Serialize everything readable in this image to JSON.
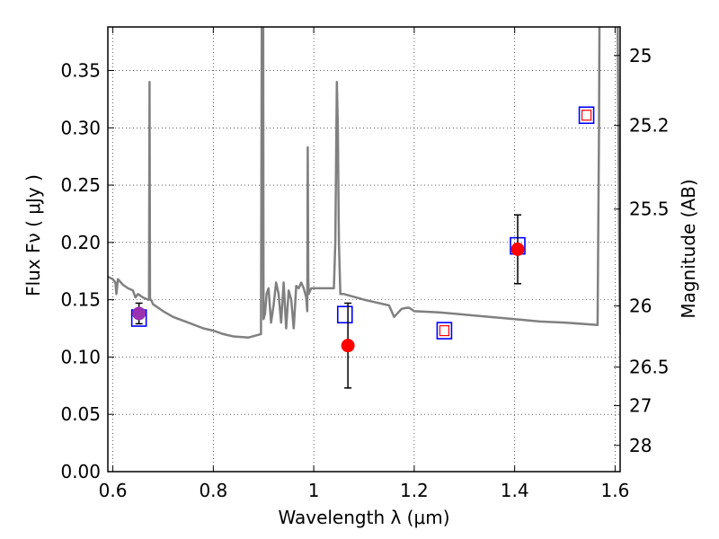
{
  "chart_data": {
    "type": "line",
    "xlabel": "Wavelength  λ (μm)",
    "ylabel_left": "Flux  Fν ( μJy )",
    "ylabel_right": "Magnitude (AB)",
    "xlim": [
      0.59,
      1.61
    ],
    "ylim": [
      0.0,
      0.388
    ],
    "x_ticks": [
      {
        "value": 0.6,
        "label": "0.6"
      },
      {
        "value": 0.8,
        "label": "0.8"
      },
      {
        "value": 1.0,
        "label": "1"
      },
      {
        "value": 1.2,
        "label": "1.2"
      },
      {
        "value": 1.4,
        "label": "1.4"
      },
      {
        "value": 1.6,
        "label": "1.6"
      }
    ],
    "y_ticks": [
      {
        "value": 0.0,
        "label": "0.00"
      },
      {
        "value": 0.05,
        "label": "0.05"
      },
      {
        "value": 0.1,
        "label": "0.10"
      },
      {
        "value": 0.15,
        "label": "0.15"
      },
      {
        "value": 0.2,
        "label": "0.20"
      },
      {
        "value": 0.25,
        "label": "0.25"
      },
      {
        "value": 0.3,
        "label": "0.30"
      },
      {
        "value": 0.35,
        "label": "0.35"
      }
    ],
    "right_ticks": [
      {
        "mag": 25,
        "label": "25"
      },
      {
        "mag": 25.2,
        "label": "25.2"
      },
      {
        "mag": 25.5,
        "label": "25.5"
      },
      {
        "mag": 26,
        "label": "26"
      },
      {
        "mag": 26.5,
        "label": "26.5"
      },
      {
        "mag": 27,
        "label": "27"
      },
      {
        "mag": 28,
        "label": "28"
      }
    ],
    "grid": true,
    "colors": {
      "sed": "#808080",
      "observed": "#ff0000",
      "model_box": "#0000ff",
      "model_inner": "#ff0000",
      "first_point": "#9b30b0",
      "errorbar": "#000000"
    },
    "sed": {
      "x": [
        0.59,
        0.6,
        0.605,
        0.607,
        0.61,
        0.62,
        0.63,
        0.64,
        0.645,
        0.65,
        0.66,
        0.67,
        0.672,
        0.673,
        0.674,
        0.676,
        0.678,
        0.68,
        0.7,
        0.72,
        0.75,
        0.78,
        0.8,
        0.82,
        0.84,
        0.87,
        0.895,
        0.897,
        0.898,
        0.899,
        0.9,
        0.903,
        0.906,
        0.91,
        0.915,
        0.92,
        0.925,
        0.93,
        0.935,
        0.94,
        0.945,
        0.95,
        0.955,
        0.96,
        0.965,
        0.97,
        0.975,
        0.98,
        0.985,
        0.987,
        0.988,
        0.989,
        0.99,
        0.995,
        1.0,
        1.03,
        1.04,
        1.043,
        1.046,
        1.048,
        1.05,
        1.053,
        1.056,
        1.06,
        1.1,
        1.12,
        1.15,
        1.16,
        1.175,
        1.185,
        1.19,
        1.2,
        1.25,
        1.3,
        1.35,
        1.4,
        1.45,
        1.5,
        1.565,
        1.568,
        1.57,
        1.575,
        1.58,
        1.6,
        1.605,
        1.608,
        1.61
      ],
      "y": [
        0.17,
        0.168,
        0.165,
        0.155,
        0.168,
        0.163,
        0.16,
        0.158,
        0.152,
        0.155,
        0.152,
        0.15,
        0.15,
        0.34,
        0.15,
        0.15,
        0.148,
        0.146,
        0.14,
        0.135,
        0.13,
        0.125,
        0.123,
        0.12,
        0.118,
        0.117,
        0.12,
        0.5,
        0.5,
        0.5,
        0.133,
        0.138,
        0.155,
        0.16,
        0.13,
        0.145,
        0.165,
        0.155,
        0.13,
        0.165,
        0.125,
        0.158,
        0.15,
        0.125,
        0.162,
        0.16,
        0.165,
        0.16,
        0.152,
        0.14,
        0.283,
        0.17,
        0.155,
        0.16,
        0.16,
        0.16,
        0.16,
        0.2,
        0.34,
        0.3,
        0.2,
        0.155,
        0.155,
        0.155,
        0.15,
        0.148,
        0.145,
        0.135,
        0.142,
        0.143,
        0.143,
        0.14,
        0.139,
        0.137,
        0.135,
        0.133,
        0.131,
        0.13,
        0.128,
        0.3,
        0.5,
        0.5,
        0.5,
        0.5,
        0.4,
        0.2,
        0.12
      ]
    },
    "observed": [
      {
        "x": 0.652,
        "y": 0.138,
        "err": 0.009
      },
      {
        "x": 1.068,
        "y": 0.11,
        "err": 0.037
      },
      {
        "x": 1.406,
        "y": 0.194,
        "err": 0.03
      }
    ],
    "model": [
      {
        "x": 0.652,
        "y": 0.134,
        "inner": false
      },
      {
        "x": 1.062,
        "y": 0.137,
        "inner": false
      },
      {
        "x": 1.26,
        "y": 0.123,
        "inner": true
      },
      {
        "x": 1.406,
        "y": 0.197,
        "inner": false
      },
      {
        "x": 1.543,
        "y": 0.311,
        "inner": true
      }
    ]
  }
}
